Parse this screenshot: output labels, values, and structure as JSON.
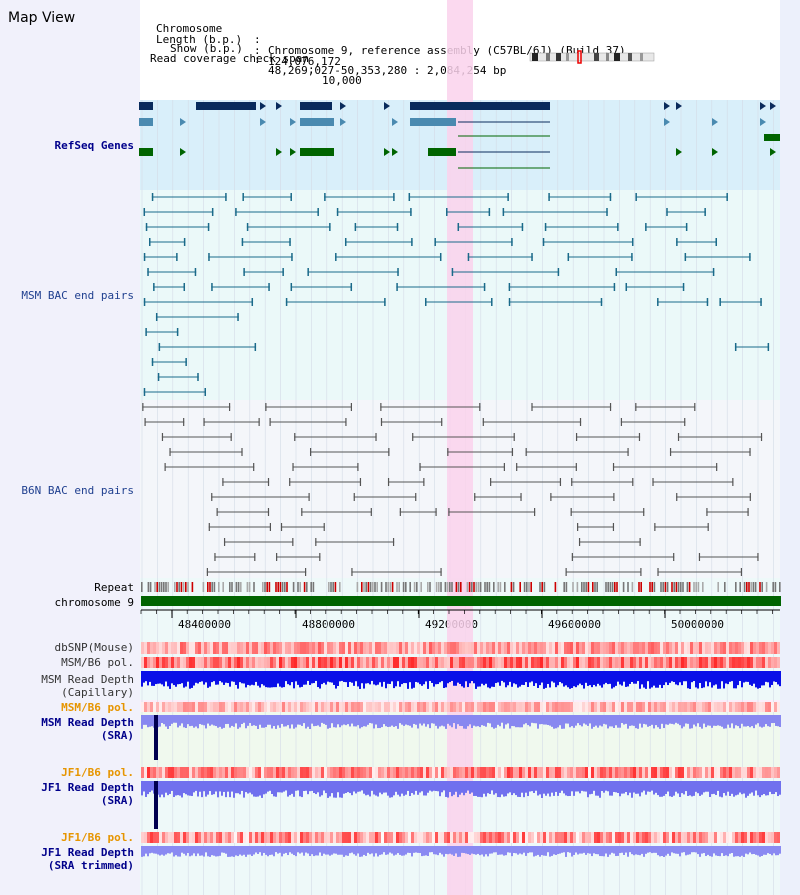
{
  "title": "Map View",
  "info": {
    "chromosome_key": "Chromosome",
    "chromosome_val": "Chromosome 9, reference assembly (C57BL/6J) (Build 37)",
    "length_key": "Length (b.p.)",
    "length_val": "124,076,172",
    "show_key": "Show (b.p.)",
    "show_val": "48,269,027-50,353,280 : 2,084,254 bp",
    "span_key": "Read coverage check span",
    "span_val": "10,000"
  },
  "tracks": {
    "refseq": "RefSeq Genes",
    "msm_bac": "MSM BAC end pairs",
    "b6n_bac": "B6N BAC end pairs",
    "repeat": "Repeat",
    "chromosome": "chromosome 9",
    "dbsnp": "dbSNP(Mouse)",
    "msm_b6_pol": "MSM/B6 pol.",
    "msm_depth_cap_1": "MSM Read Depth",
    "msm_depth_cap_2": "(Capillary)",
    "msm_b6_pol_2": "MSM/B6 pol.",
    "msm_depth_sra_1": "MSM Read Depth",
    "msm_depth_sra_2": "(SRA)",
    "jf1_b6_pol": "JF1/B6 pol.",
    "jf1_depth_sra_1": "JF1 Read Depth",
    "jf1_depth_sra_2": "(SRA)",
    "jf1_b6_pol_2": "JF1/B6 pol.",
    "jf1_depth_trim_1": "JF1 Read Depth",
    "jf1_depth_trim_2": "(SRA trimmed)"
  },
  "axis": {
    "ticks": [
      "48400000",
      "48800000",
      "49200000",
      "49600000",
      "50000000"
    ]
  },
  "colors": {
    "refseq_bg": "#d9effa",
    "msm_bg": "#ebf9f9",
    "b6n_bg": "#f4f6fa",
    "highlight": "#fad2ec",
    "chromosome": "#006400"
  }
}
